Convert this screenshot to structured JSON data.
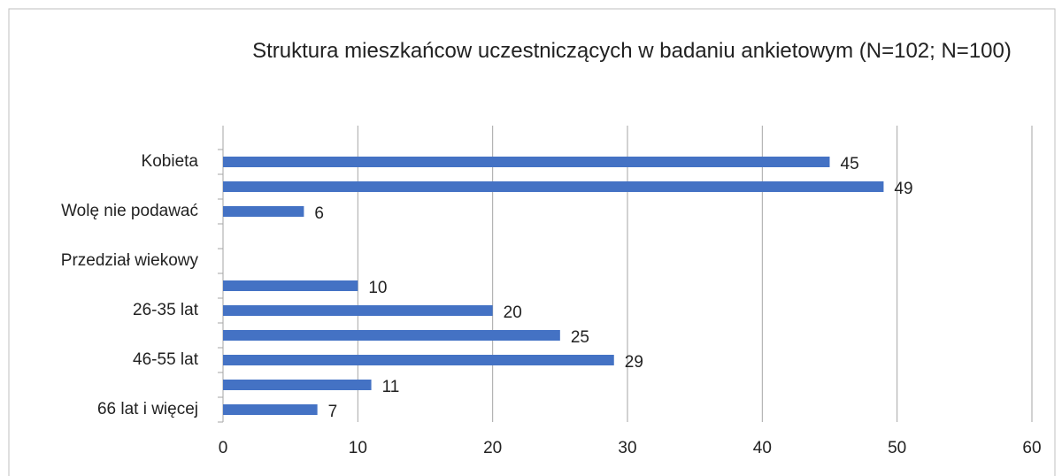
{
  "chart_data": {
    "type": "bar",
    "orientation": "horizontal",
    "title": "Struktura mieszkańcow uczestniczących w badaniu ankietowym (N=102; N=100)",
    "categories": [
      "Kobieta",
      null,
      "Wolę nie podawać",
      null,
      "Przedział wiekowy",
      null,
      "26-35 lat",
      null,
      "46-55 lat",
      null,
      "66 lat i więcej"
    ],
    "values": [
      45,
      49,
      6,
      null,
      null,
      10,
      20,
      25,
      29,
      11,
      7
    ],
    "color": "#4472c4",
    "xlim": [
      0,
      60
    ],
    "xticks": [
      0,
      10,
      20,
      30,
      40,
      50,
      60
    ],
    "grid": true
  }
}
